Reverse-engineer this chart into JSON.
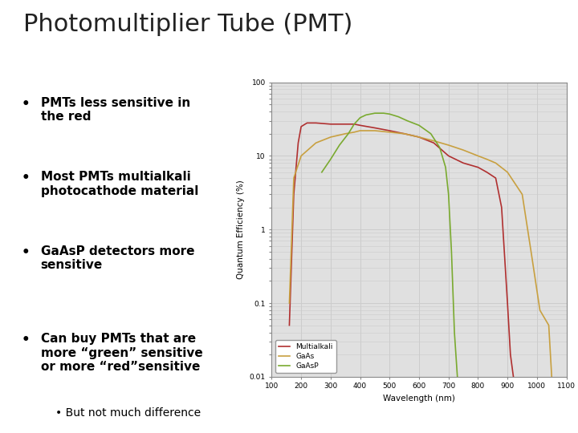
{
  "title": "Photomultiplier Tube (PMT)",
  "title_fontsize": 22,
  "title_fontweight": "light",
  "title_color": "#222222",
  "background_color": "#ffffff",
  "bullet_points": [
    "PMTs less sensitive in\nthe red",
    "Most PMTs multialkali\nphotocathode material",
    "GaAsP detectors more\nsensitive",
    "Can buy PMTs that are\nmore “green” sensitive\nor more “red”sensitive"
  ],
  "sub_bullet": "But not much difference",
  "bullet_fontsize": 11,
  "sub_bullet_fontsize": 10,
  "plot_xlabel": "Wavelength (nm)",
  "plot_ylabel": "Quantum Efficiency (%)",
  "plot_xlim": [
    100,
    1100
  ],
  "plot_ylim_log": [
    0.01,
    100
  ],
  "plot_xticks": [
    100,
    200,
    300,
    400,
    500,
    600,
    700,
    800,
    900,
    1000,
    1100
  ],
  "legend_labels": [
    "Multialkali",
    "GaAs",
    "GaAsP"
  ],
  "line_colors": {
    "Multialkali": "#b03030",
    "GaAs": "#c8a040",
    "GaAsP": "#7aaa30"
  },
  "grid_color": "#cccccc",
  "plot_bg_color": "#e0e0e0"
}
